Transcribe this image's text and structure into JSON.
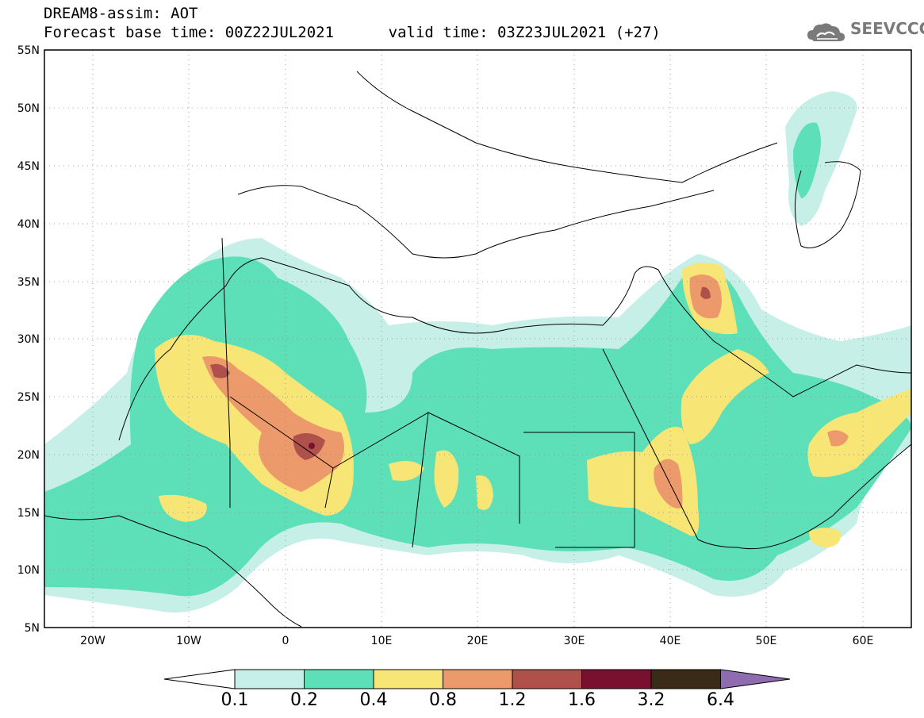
{
  "header": {
    "model_line": "DREAM8-assim: AOT",
    "time_line": "Forecast base time: 00Z22JUL2021      valid time: 03Z23JUL2021 (+27)"
  },
  "logo": {
    "text": "SEEVCCC"
  },
  "map": {
    "projection": "lat-lon",
    "lon_range": [
      -25,
      65
    ],
    "lat_range": [
      5,
      55
    ],
    "lat_ticks": [
      "55N",
      "50N",
      "45N",
      "40N",
      "35N",
      "30N",
      "25N",
      "20N",
      "15N",
      "10N",
      "5N"
    ],
    "lon_ticks": [
      "20W",
      "10W",
      "0",
      "10E",
      "20E",
      "30E",
      "40E",
      "50E",
      "60E"
    ],
    "grid": "dotted",
    "variable": "Aerosol optical thickness (dust)"
  },
  "colorbar": {
    "thresholds": [
      "0.1",
      "0.2",
      "0.4",
      "0.8",
      "1.2",
      "1.6",
      "3.2",
      "6.4"
    ],
    "colors": [
      "#c6efe8",
      "#5de0b7",
      "#f7e576",
      "#ec9a6c",
      "#b0504a",
      "#7a1030",
      "#3a2a18",
      "#8f6cb0"
    ]
  }
}
